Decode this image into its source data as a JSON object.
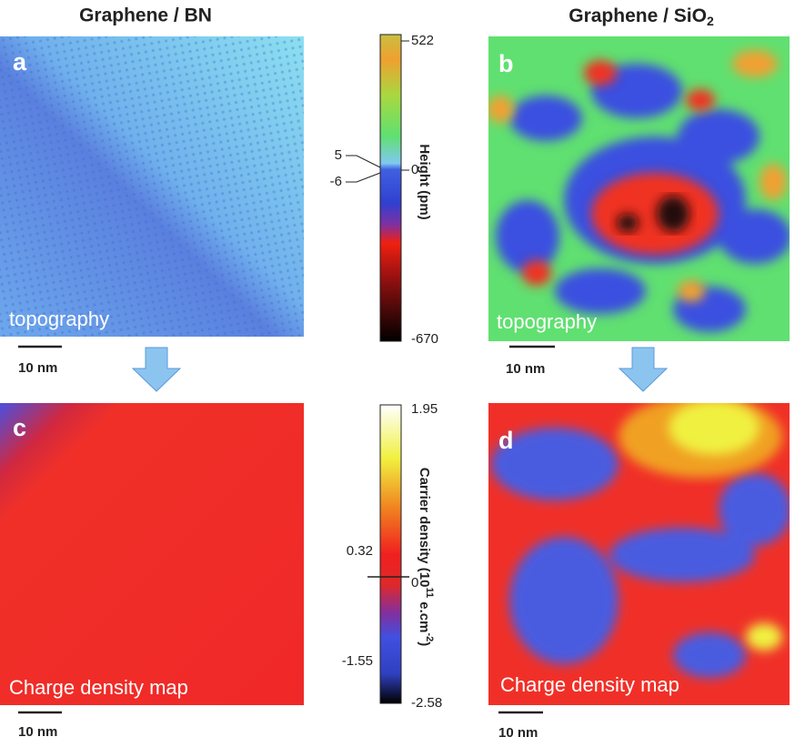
{
  "titles": {
    "left": "Graphene / BN",
    "right": {
      "text": "Graphene / SiO",
      "subscript": "2"
    }
  },
  "panels": [
    {
      "letter": "a",
      "caption": "topography",
      "scale_bar": "10 nm"
    },
    {
      "letter": "b",
      "caption": "topography",
      "scale_bar": "10 nm"
    },
    {
      "letter": "c",
      "caption": "Charge density map",
      "scale_bar": "10 nm"
    },
    {
      "letter": "d",
      "caption": "Charge density map",
      "scale_bar": "10 nm"
    }
  ],
  "colorbars": [
    {
      "label": "Height (pm)",
      "ticks_right": [
        "522",
        "0",
        "-670"
      ],
      "ticks_left": [
        "5",
        "-6"
      ]
    },
    {
      "label": {
        "prefix": "Carrier density (10",
        "exp": "11",
        "middle": " e.cm",
        "exp2": "-2",
        "suffix": ")"
      },
      "ticks_right": [
        "1.95",
        "0",
        "-2.58"
      ],
      "ticks_left": [
        "0.32",
        "-1.55"
      ]
    }
  ]
}
